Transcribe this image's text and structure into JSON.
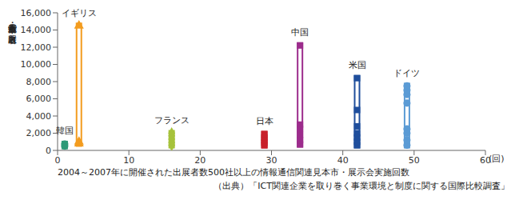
{
  "chart_data": {
    "type": "scatter",
    "x_label": "2004～2007年に開催された出展者数500社以上の情報通信関連見本市・展示会実施回数",
    "x_unit": "(回)",
    "y_label": "各見本市・展示会の出展者数",
    "source": "（出典）「ICT関連企業を取り巻く事業環境と制度に関する国際比較調査」",
    "xlim": [
      0,
      60
    ],
    "xticks": [
      0,
      10,
      20,
      30,
      40,
      50,
      60
    ],
    "ylim": [
      0,
      16000
    ],
    "yticks": [
      0,
      {
        "value": 2000,
        "label": "2,000"
      },
      {
        "value": 4000,
        "label": "4,000"
      },
      {
        "value": 6000,
        "label": "6,000"
      },
      {
        "value": 8000,
        "label": "8,000"
      },
      {
        "value": 10000,
        "label": "10,000"
      },
      {
        "value": 12000,
        "label": "12,000"
      },
      {
        "value": 14000,
        "label": "14,000"
      },
      {
        "value": 16000,
        "label": "16,000"
      }
    ],
    "grid": false,
    "series": [
      {
        "name": "韓国",
        "color": "#2e9a78",
        "marker": "circle",
        "x": 1,
        "values": [
          500,
          750
        ]
      },
      {
        "name": "イギリス",
        "color": "#f39c1f",
        "marker": "triangle",
        "x": 3,
        "values": [
          800,
          1000,
          14500
        ]
      },
      {
        "name": "フランス",
        "color": "#a6c23b",
        "marker": "diamond",
        "x": 16,
        "values": [
          600,
          900,
          1300,
          1700,
          2000
        ]
      },
      {
        "name": "日本",
        "color": "#c8202a",
        "marker": "square",
        "x": 29,
        "values": [
          600,
          900,
          1200,
          1500,
          1900
        ]
      },
      {
        "name": "中国",
        "color": "#9c2c8c",
        "marker": "square",
        "x": 34,
        "values": [
          700,
          1200,
          1800,
          2500,
          3000,
          12200
        ]
      },
      {
        "name": "米国",
        "color": "#1f4e9c",
        "marker": "square",
        "x": 42,
        "values": [
          600,
          1000,
          1500,
          2000,
          2800,
          4700,
          8400
        ]
      },
      {
        "name": "ドイツ",
        "color": "#5b9bd5",
        "marker": "circle",
        "x": 49,
        "values": [
          600,
          1200,
          2000,
          2500,
          5500,
          6500,
          7000,
          7500
        ]
      }
    ]
  }
}
